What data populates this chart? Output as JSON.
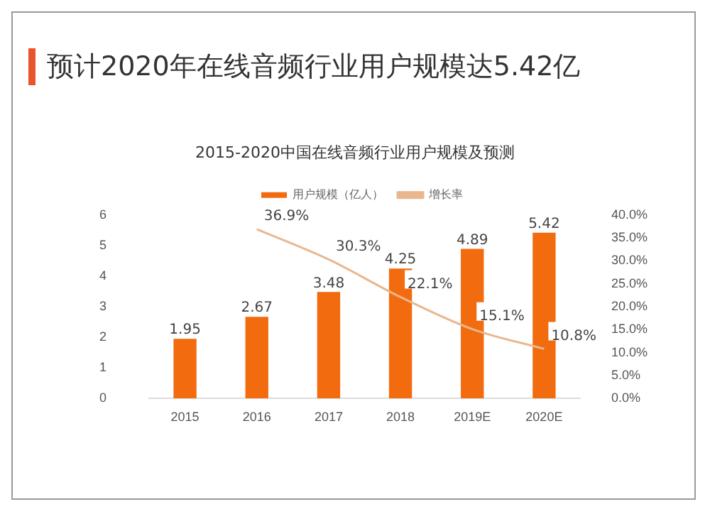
{
  "chart_data": {
    "type": "bar",
    "title": "预计2020年在线音频行业用户规模达5.42亿",
    "subtitle": "2015-2020中国在线音频行业用户规模及预测",
    "categories": [
      "2015",
      "2016",
      "2017",
      "2018",
      "2019E",
      "2020E"
    ],
    "series": [
      {
        "name": "用户规模（亿人）",
        "color": "#f26b0f",
        "values": [
          1.95,
          2.67,
          3.48,
          4.25,
          4.89,
          5.42
        ],
        "value_labels": [
          "1.95",
          "2.67",
          "3.48",
          "4.25",
          "4.89",
          "5.42"
        ]
      },
      {
        "name": "增长率",
        "type": "line",
        "axis": "y2",
        "color": "#e9b78f",
        "values": [
          null,
          36.9,
          30.3,
          22.1,
          15.1,
          10.8
        ],
        "value_labels": [
          null,
          "36.9%",
          "30.3%",
          "22.1%",
          "15.1%",
          "10.8%"
        ]
      }
    ],
    "ylim": [
      0,
      6
    ],
    "yticks": [
      0,
      1,
      2,
      3,
      4,
      5,
      6
    ],
    "y2lim": [
      0,
      40
    ],
    "y2ticks": [
      {
        "value": 0,
        "label": "0.0%"
      },
      {
        "value": 5,
        "label": "5.0%"
      },
      {
        "value": 10,
        "label": "10.0%"
      },
      {
        "value": 15,
        "label": "15.0%"
      },
      {
        "value": 20,
        "label": "20.0%"
      },
      {
        "value": 25,
        "label": "25.0%"
      },
      {
        "value": 30,
        "label": "30.0%"
      },
      {
        "value": 35,
        "label": "35.0%"
      },
      {
        "value": 40,
        "label": "40.0%"
      }
    ],
    "grid": false,
    "legend": "top",
    "marker": "none"
  }
}
